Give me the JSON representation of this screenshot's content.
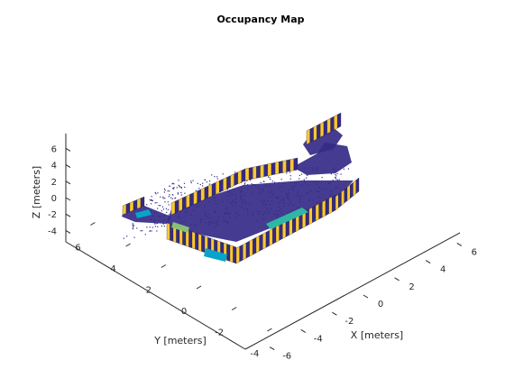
{
  "chart_data": {
    "type": "scatter",
    "title": "Occupancy Map",
    "xlabel": "X [meters]",
    "ylabel": "Y [meters]",
    "zlabel": "Z [meters]",
    "x_ticks": [
      -6,
      -4,
      -2,
      0,
      2,
      4,
      6
    ],
    "y_ticks": [
      -4,
      -2,
      0,
      2,
      4,
      6
    ],
    "z_ticks": [
      -4,
      -2,
      0,
      2,
      4,
      6
    ],
    "xlim": [
      -6.5,
      6.5
    ],
    "ylim": [
      -4.5,
      7
    ],
    "zlim": [
      -5,
      7
    ],
    "colormap": "parula",
    "colors": [
      "#352a87",
      "#0f5cdd",
      "#1481d6",
      "#06a4ca",
      "#2eb7a4",
      "#87bf77",
      "#d1bb59",
      "#fec832",
      "#f9fb0e"
    ],
    "grid": false,
    "legend": "none",
    "occupied_regions": [
      {
        "x": [
          -4.5,
          -4.0
        ],
        "y": [
          -2.5,
          6.5
        ],
        "z": [
          -3,
          1
        ]
      },
      {
        "x": [
          2.8,
          3.3
        ],
        "y": [
          -2.5,
          6.5
        ],
        "z": [
          -3,
          1
        ]
      },
      {
        "x": [
          -4.5,
          3.3
        ],
        "y": [
          6.0,
          6.5
        ],
        "z": [
          -3,
          1
        ]
      },
      {
        "x": [
          -4.5,
          3.3
        ],
        "y": [
          -2.5,
          -2.0
        ],
        "z": [
          -3,
          1
        ]
      }
    ]
  }
}
